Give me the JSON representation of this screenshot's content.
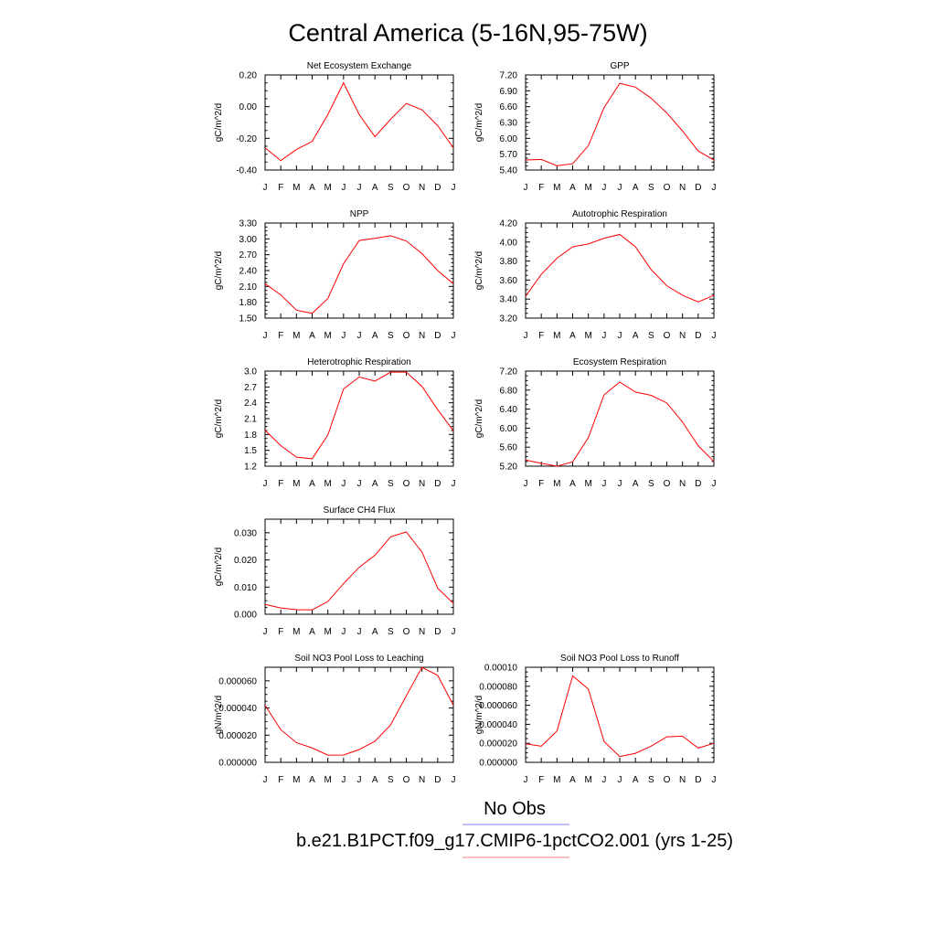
{
  "title": "Central America (5-16N,95-75W)",
  "legend": {
    "obs_label": "No Obs",
    "obs_color": "#8080f0",
    "model_label": "b.e21.B1PCT.f09_g17.CMIP6-1pctCO2.001 (yrs 1-25)",
    "model_color": "#f08080"
  },
  "line_color": "#ff0000",
  "chart_data": [
    {
      "type": "line",
      "title": "Net Ecosystem Exchange",
      "ylabel": "gC/m^2/d",
      "x": [
        "J",
        "F",
        "M",
        "A",
        "M",
        "J",
        "J",
        "A",
        "S",
        "O",
        "N",
        "D",
        "J"
      ],
      "ylim": [
        -0.4,
        0.2
      ],
      "yticks": [
        "0.20",
        "0.00",
        "-0.20",
        "-0.40"
      ],
      "series": [
        {
          "values": [
            -0.26,
            -0.34,
            -0.27,
            -0.22,
            -0.05,
            0.15,
            -0.05,
            -0.19,
            -0.08,
            0.02,
            -0.02,
            -0.12,
            -0.26
          ]
        }
      ]
    },
    {
      "type": "line",
      "title": "GPP",
      "ylabel": "gC/m^2/d",
      "x": [
        "J",
        "F",
        "M",
        "A",
        "M",
        "J",
        "J",
        "A",
        "S",
        "O",
        "N",
        "D",
        "J"
      ],
      "ylim": [
        5.4,
        7.2
      ],
      "yticks": [
        "7.20",
        "6.90",
        "6.60",
        "6.30",
        "6.00",
        "5.70",
        "5.40"
      ],
      "series": [
        {
          "values": [
            5.59,
            5.6,
            5.48,
            5.52,
            5.86,
            6.58,
            7.04,
            6.97,
            6.76,
            6.48,
            6.14,
            5.76,
            5.59
          ]
        }
      ]
    },
    {
      "type": "line",
      "title": "NPP",
      "ylabel": "gC/m^2/d",
      "x": [
        "J",
        "F",
        "M",
        "A",
        "M",
        "J",
        "J",
        "A",
        "S",
        "O",
        "N",
        "D",
        "J"
      ],
      "ylim": [
        1.5,
        3.3
      ],
      "yticks": [
        "3.30",
        "3.00",
        "2.70",
        "2.40",
        "2.10",
        "1.80",
        "1.50"
      ],
      "series": [
        {
          "values": [
            2.15,
            1.94,
            1.65,
            1.59,
            1.87,
            2.53,
            2.97,
            3.01,
            3.06,
            2.96,
            2.72,
            2.4,
            2.15
          ]
        }
      ]
    },
    {
      "type": "line",
      "title": "Autotrophic Respiration",
      "ylabel": "gC/m^2/d",
      "x": [
        "J",
        "F",
        "M",
        "A",
        "M",
        "J",
        "J",
        "A",
        "S",
        "O",
        "N",
        "D",
        "J"
      ],
      "ylim": [
        3.2,
        4.2
      ],
      "yticks": [
        "4.20",
        "4.00",
        "3.80",
        "3.60",
        "3.40",
        "3.20"
      ],
      "series": [
        {
          "values": [
            3.43,
            3.66,
            3.83,
            3.95,
            3.98,
            4.04,
            4.08,
            3.95,
            3.71,
            3.54,
            3.44,
            3.37,
            3.44
          ]
        }
      ]
    },
    {
      "type": "line",
      "title": "Heterotrophic Respiration",
      "ylabel": "gC/m^2/d",
      "x": [
        "J",
        "F",
        "M",
        "A",
        "M",
        "J",
        "J",
        "A",
        "S",
        "O",
        "N",
        "D",
        "J"
      ],
      "ylim": [
        1.2,
        3.0
      ],
      "yticks": [
        "3.0",
        "2.7",
        "2.4",
        "2.1",
        "1.8",
        "1.5",
        "1.2"
      ],
      "series": [
        {
          "values": [
            1.88,
            1.59,
            1.37,
            1.34,
            1.79,
            2.66,
            2.89,
            2.81,
            2.98,
            2.98,
            2.71,
            2.27,
            1.87
          ]
        }
      ]
    },
    {
      "type": "line",
      "title": "Ecosystem Respiration",
      "ylabel": "gC/m^2/d",
      "x": [
        "J",
        "F",
        "M",
        "A",
        "M",
        "J",
        "J",
        "A",
        "S",
        "O",
        "N",
        "D",
        "J"
      ],
      "ylim": [
        5.2,
        7.2
      ],
      "yticks": [
        "7.20",
        "6.80",
        "6.40",
        "6.00",
        "5.60",
        "5.20"
      ],
      "series": [
        {
          "values": [
            5.33,
            5.26,
            5.2,
            5.29,
            5.8,
            6.7,
            6.97,
            6.76,
            6.69,
            6.53,
            6.13,
            5.63,
            5.3
          ]
        }
      ]
    },
    {
      "type": "line",
      "title": "Surface CH4 Flux",
      "ylabel": "gC/m^2/d",
      "x": [
        "J",
        "F",
        "M",
        "A",
        "M",
        "J",
        "J",
        "A",
        "S",
        "O",
        "N",
        "D",
        "J"
      ],
      "ylim": [
        0.0,
        0.035
      ],
      "yticks": [
        "0.030",
        "0.020",
        "0.010",
        "0.000"
      ],
      "ytick_values": [
        0.03,
        0.02,
        0.01,
        0.0
      ],
      "series": [
        {
          "values": [
            0.0036,
            0.0023,
            0.0017,
            0.0016,
            0.0047,
            0.0113,
            0.0173,
            0.0217,
            0.0285,
            0.0303,
            0.0229,
            0.0096,
            0.004
          ]
        }
      ]
    },
    {
      "type": "line",
      "title": "Soil NO3 Pool Loss to Leaching",
      "ylabel": "gN/m^2/d",
      "x": [
        "J",
        "F",
        "M",
        "A",
        "M",
        "J",
        "J",
        "A",
        "S",
        "O",
        "N",
        "D",
        "J"
      ],
      "ylim": [
        0.0,
        7e-05
      ],
      "yticks": [
        "0.000060",
        "0.000040",
        "0.000020",
        "0.000000"
      ],
      "ytick_values": [
        6e-05,
        4e-05,
        2e-05,
        0.0
      ],
      "series": [
        {
          "values": [
            4.2e-05,
            2.4e-05,
            1.45e-05,
            1.06e-05,
            5.3e-06,
            5.4e-06,
            9.4e-06,
            1.55e-05,
            2.75e-05,
            4.9e-05,
            7e-05,
            6.4e-05,
            4.2e-05
          ]
        }
      ]
    },
    {
      "type": "line",
      "title": "Soil NO3 Pool Loss to Runoff",
      "ylabel": "gN/m^2/d",
      "x": [
        "J",
        "F",
        "M",
        "A",
        "M",
        "J",
        "J",
        "A",
        "S",
        "O",
        "N",
        "D",
        "J"
      ],
      "ylim": [
        0.0,
        0.0001
      ],
      "yticks": [
        "0.00010",
        "0.000080",
        "0.000060",
        "0.000040",
        "0.000020",
        "0.000000"
      ],
      "ytick_values": [
        0.0001,
        8e-05,
        6e-05,
        4e-05,
        2e-05,
        0.0
      ],
      "series": [
        {
          "values": [
            1.95e-05,
            1.7e-05,
            3.3e-05,
            9.1e-05,
            7.7e-05,
            2.2e-05,
            6e-06,
            9.5e-06,
            1.7e-05,
            2.68e-05,
            2.75e-05,
            1.5e-05,
            2e-05
          ]
        }
      ]
    }
  ]
}
